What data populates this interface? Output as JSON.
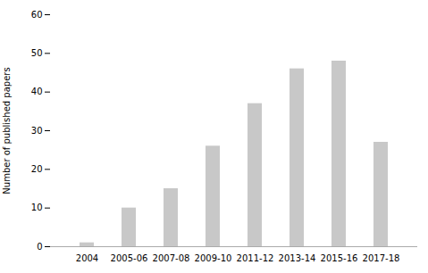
{
  "chart_data": {
    "type": "bar",
    "categories": [
      "2004",
      "2005-06",
      "2007-08",
      "2009-10",
      "2011-12",
      "2013-14",
      "2015-16",
      "2017-18"
    ],
    "values": [
      1,
      10,
      15,
      26,
      37,
      46,
      48,
      27
    ],
    "color": "#c8c8c8",
    "ylabel": "Number of published papers",
    "ylim": [
      0,
      60
    ],
    "yticks": [
      0,
      10,
      20,
      30,
      40,
      50,
      60
    ],
    "grid": false
  }
}
